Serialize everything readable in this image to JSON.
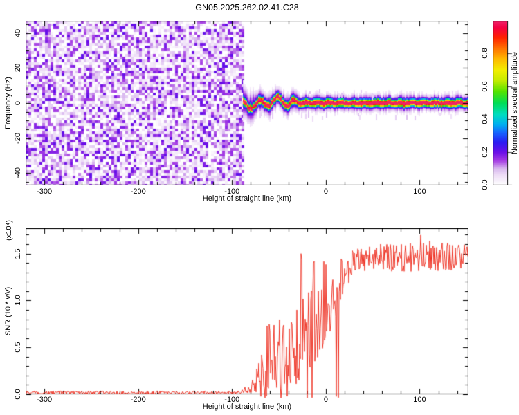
{
  "page": {
    "title": "GN05.2025.262.02.41.C28",
    "background": "#ffffff",
    "text_color": "#000000"
  },
  "chart_data": [
    {
      "type": "heatmap",
      "name": "doppler-spectrogram",
      "title": "",
      "xlabel": "Height of straight line (km)",
      "ylabel": "Frequency (Hz)",
      "xlim": [
        -320,
        152
      ],
      "ylim": [
        -47,
        47
      ],
      "x_major_ticks": [
        -300,
        -200,
        -100,
        0,
        100
      ],
      "x_minor_step": 20,
      "y_major_labels": [
        "40",
        "20",
        "0",
        "-20",
        "-40"
      ],
      "y_major_values": [
        40,
        20,
        0,
        -20,
        -40
      ],
      "y_minor_step": 5,
      "grid": false,
      "noise_region": {
        "x_start": -320,
        "x_end": -88,
        "max_amplitude": 0.21,
        "description": "random purple speckle noise filling the full frequency range up to -88 km"
      },
      "signal_line": {
        "x_start": -88,
        "x_end": 152,
        "center_freq_hz": 0,
        "peak_amplitude": 1.0,
        "core_width_hz": 2,
        "halo_width_hz": 5,
        "wobble_until_km": -30,
        "wobble_amplitude_hz": 3,
        "description": "narrow horizontal echo at 0 Hz: red/crimson core, green-yellow sheath, blue-purple halo, wobbles between -88 and -30 km then straightens"
      },
      "colorbar": {
        "label": "Normalized spectral amplitude",
        "tick_labels": [
          "0.0",
          "0.2",
          "0.4",
          "0.6",
          "0.8"
        ],
        "tick_values": [
          0,
          0.2,
          0.4,
          0.6,
          0.8
        ],
        "range": [
          0,
          1
        ]
      }
    },
    {
      "type": "line",
      "name": "snr-profile",
      "title": "",
      "xlabel": "Height of straight line (km)",
      "ylabel": "SNR (10 * v/v)",
      "scale_note": "(x10⁴)",
      "xlim": [
        -320,
        152
      ],
      "ylim": [
        0,
        1.77
      ],
      "x_major_ticks": [
        -300,
        -200,
        -100,
        0,
        100
      ],
      "x_minor_step": 20,
      "y_major_labels": [
        "0.0",
        "0.5",
        "1.0",
        "1.5"
      ],
      "y_major_values": [
        0,
        0.5,
        1,
        1.5
      ],
      "y_minor_step": 0.1,
      "grid": false,
      "series": [
        {
          "name": "SNR",
          "color": "#ee3527",
          "units": "x10^4 (10 * v/v)",
          "envelope_x_lo_hi": [
            [
              -320,
              0,
              0.035
            ],
            [
              -110,
              0,
              0.035
            ],
            [
              -92,
              0,
              0.05
            ],
            [
              -84,
              0.01,
              0.1
            ],
            [
              -76,
              0.02,
              0.18
            ],
            [
              -70,
              0.03,
              0.45
            ],
            [
              -64,
              0.04,
              0.75
            ],
            [
              -56,
              0.05,
              0.9
            ],
            [
              -50,
              0.04,
              0.8
            ],
            [
              -44,
              0.06,
              0.9
            ],
            [
              -38,
              0.05,
              0.97
            ],
            [
              -32,
              0.1,
              1.0
            ],
            [
              -26,
              0.15,
              1.05
            ],
            [
              -20,
              0.25,
              1.1
            ],
            [
              -14,
              0.3,
              1.2
            ],
            [
              -8,
              0.4,
              1.3
            ],
            [
              -2,
              0.5,
              1.42
            ],
            [
              4,
              0.55,
              1.35
            ],
            [
              10,
              0.8,
              1.42
            ],
            [
              16,
              0.95,
              1.45
            ],
            [
              24,
              1.15,
              1.5
            ],
            [
              34,
              1.3,
              1.58
            ],
            [
              50,
              1.32,
              1.62
            ],
            [
              80,
              1.3,
              1.6
            ],
            [
              110,
              1.32,
              1.64
            ],
            [
              152,
              1.3,
              1.6
            ]
          ],
          "spikes_x_v": [
            [
              -26,
              1.54
            ],
            [
              -13,
              1.45
            ],
            [
              -2,
              1.5
            ],
            [
              101,
              1.72
            ]
          ],
          "description": "noise floor near 0 below -90 km, intermittent tall spikes between -75 and -10 km, plateau around 1.45x10^4 above +25 km"
        }
      ]
    }
  ],
  "palette": {
    "name": "rainbow-white-base",
    "stops": [
      [
        0.0,
        "#ffffff"
      ],
      [
        0.06,
        "#eedef7"
      ],
      [
        0.1,
        "#d9b8ef"
      ],
      [
        0.15,
        "#a43ae3"
      ],
      [
        0.2,
        "#6a0fe8"
      ],
      [
        0.26,
        "#2b1cf2"
      ],
      [
        0.32,
        "#1667ff"
      ],
      [
        0.37,
        "#00b0f0"
      ],
      [
        0.43,
        "#00ddc0"
      ],
      [
        0.5,
        "#00dd55"
      ],
      [
        0.57,
        "#55e300"
      ],
      [
        0.64,
        "#c8ec00"
      ],
      [
        0.7,
        "#f2ee00"
      ],
      [
        0.77,
        "#ffb800"
      ],
      [
        0.84,
        "#ff6a00"
      ],
      [
        0.9,
        "#ff2300"
      ],
      [
        0.96,
        "#f40043"
      ],
      [
        1.0,
        "#ee2268"
      ]
    ]
  }
}
